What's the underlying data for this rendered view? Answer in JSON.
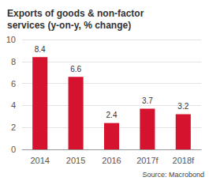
{
  "chart_data": {
    "type": "bar",
    "title": "Exports of goods & non-factor\nservices (y-on-y, % change)",
    "categories": [
      "2014",
      "2015",
      "2016",
      "2017f",
      "2018f"
    ],
    "values": [
      8.4,
      6.6,
      2.4,
      3.7,
      3.2
    ],
    "color": "#d5132e",
    "ylim": [
      0,
      10
    ],
    "yticks": [
      0,
      2,
      4,
      6,
      8,
      10
    ],
    "grid": true,
    "data_labels": true,
    "annotations": [
      "Source: Macrobond"
    ]
  }
}
